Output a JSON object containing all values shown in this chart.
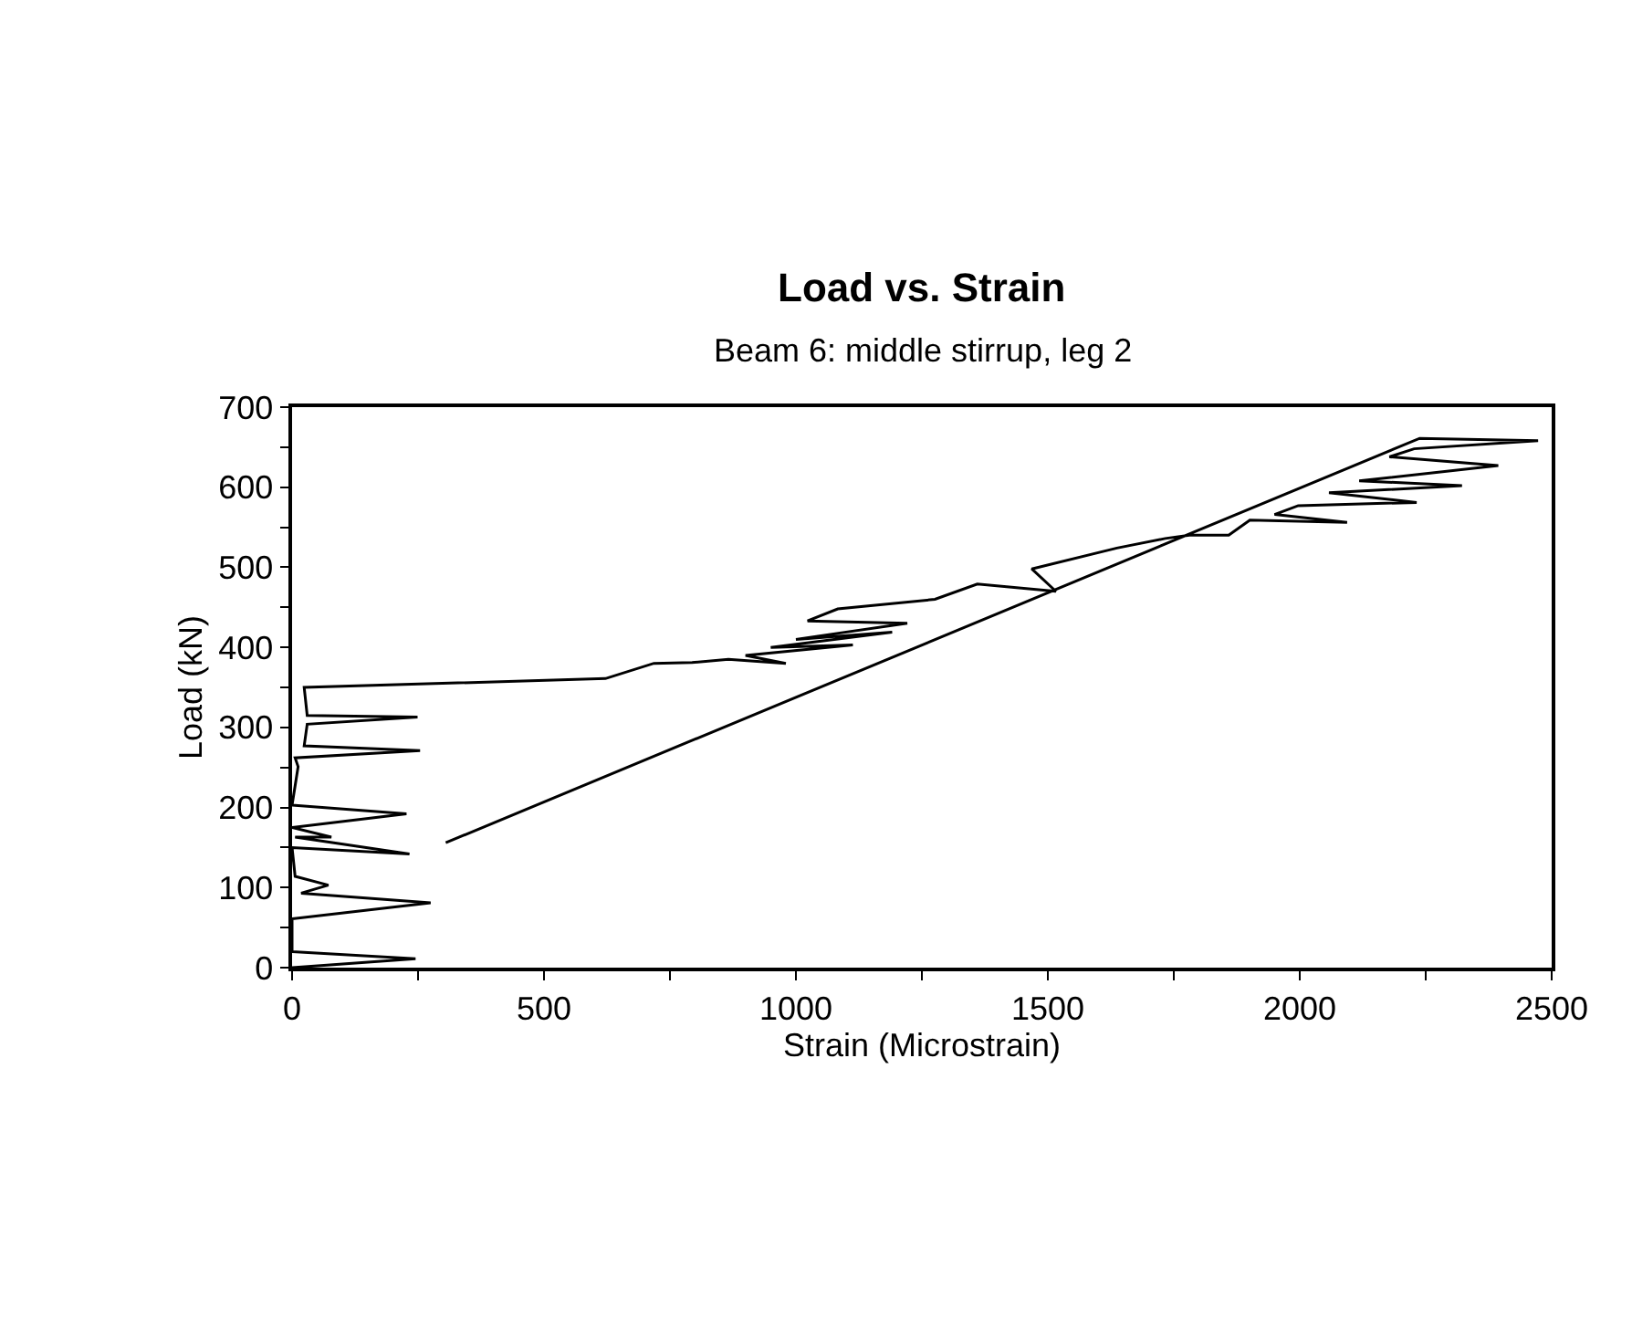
{
  "chart_data": {
    "type": "line",
    "title": "Load vs. Strain",
    "subtitle": "Beam 6: middle stirrup, leg 2",
    "xlabel": "Strain (Microstrain)",
    "ylabel": "Load (kN)",
    "series": [
      {
        "color": "#000000",
        "x": [
          0,
          245,
          0,
          0,
          275,
          18,
          72,
          6,
          0,
          233,
          6,
          78,
          0,
          227,
          0,
          12,
          6,
          254,
          24,
          30,
          249,
          30,
          24,
          622,
          718,
          794,
          866,
          980,
          900,
          1113,
          950,
          1191,
          1000,
          1221,
          1023,
          1083,
          1276,
          1360,
          1516,
          1468,
          1637,
          1733,
          1781,
          1859,
          1901,
          2094,
          1950,
          1997,
          2232,
          2058,
          2322,
          2118,
          2394,
          2178,
          2227,
          2473,
          2238,
          305
        ],
        "values": [
          0,
          11,
          20,
          61,
          81,
          93,
          103,
          114,
          150,
          142,
          163,
          163,
          175,
          192,
          203,
          251,
          262,
          271,
          277,
          304,
          313,
          315,
          350,
          361,
          380,
          381,
          385,
          380,
          390,
          403,
          400,
          419,
          410,
          430,
          433,
          448,
          460,
          479,
          470,
          498,
          524,
          536,
          540,
          540,
          559,
          556,
          566,
          577,
          581,
          593,
          602,
          608,
          627,
          638,
          648,
          658,
          661,
          156
        ]
      }
    ],
    "xlim": [
      0,
      2500
    ],
    "ylim": [
      0,
      700
    ],
    "xticks": [
      0,
      {
        "value": 250,
        "label": null
      },
      500,
      {
        "value": 750,
        "label": null
      },
      1000,
      {
        "value": 1250,
        "label": null
      },
      1500,
      {
        "value": 1750,
        "label": null
      },
      2000,
      {
        "value": 2250,
        "label": null
      },
      2500
    ],
    "yticks": [
      0,
      {
        "value": 50,
        "label": null
      },
      100,
      {
        "value": 150,
        "label": null
      },
      200,
      {
        "value": 250,
        "label": null
      },
      300,
      {
        "value": 350,
        "label": null
      },
      400,
      {
        "value": 450,
        "label": null
      },
      500,
      {
        "value": 550,
        "label": null
      },
      600,
      {
        "value": 650,
        "label": null
      },
      700
    ],
    "marker": "none",
    "line_style": "solid"
  }
}
